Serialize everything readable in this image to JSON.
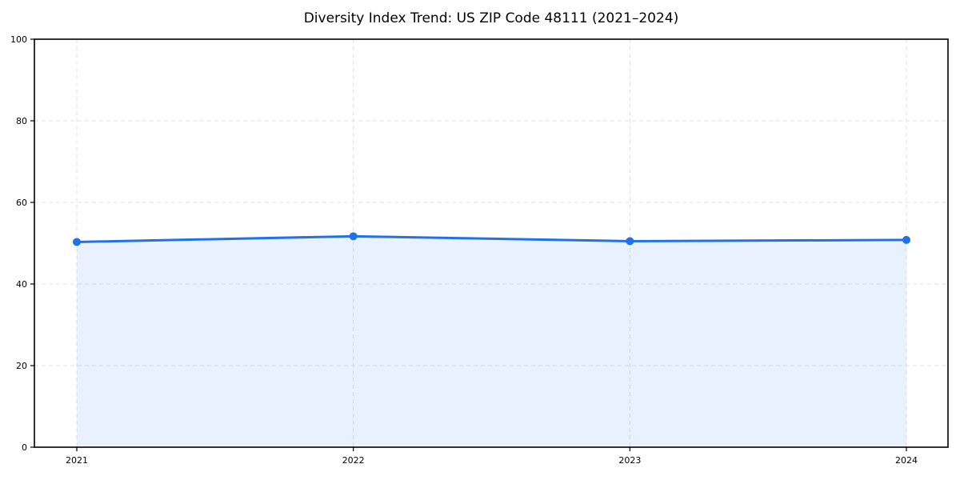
{
  "chart_data": {
    "type": "area",
    "title": "Diversity Index Trend: US ZIP Code 48111 (2021–2024)",
    "categories": [
      "2021",
      "2022",
      "2023",
      "2024"
    ],
    "series": [
      {
        "name": "Diversity Index",
        "values": [
          50.3,
          51.7,
          50.5,
          50.8
        ]
      }
    ],
    "xlabel": "",
    "ylabel": "",
    "ylim": [
      0,
      100
    ],
    "yticks": [
      0,
      20,
      40,
      60,
      80,
      100
    ],
    "grid": "dashed, both axes",
    "legend": "none",
    "marker": "circle",
    "colors": {
      "line": "#2172e8",
      "fill": "#2172e8",
      "fill_opacity": "0.1",
      "grid": "#e2e2e2",
      "axis": "#000000",
      "text": "#000000",
      "background": "#ffffff"
    }
  }
}
